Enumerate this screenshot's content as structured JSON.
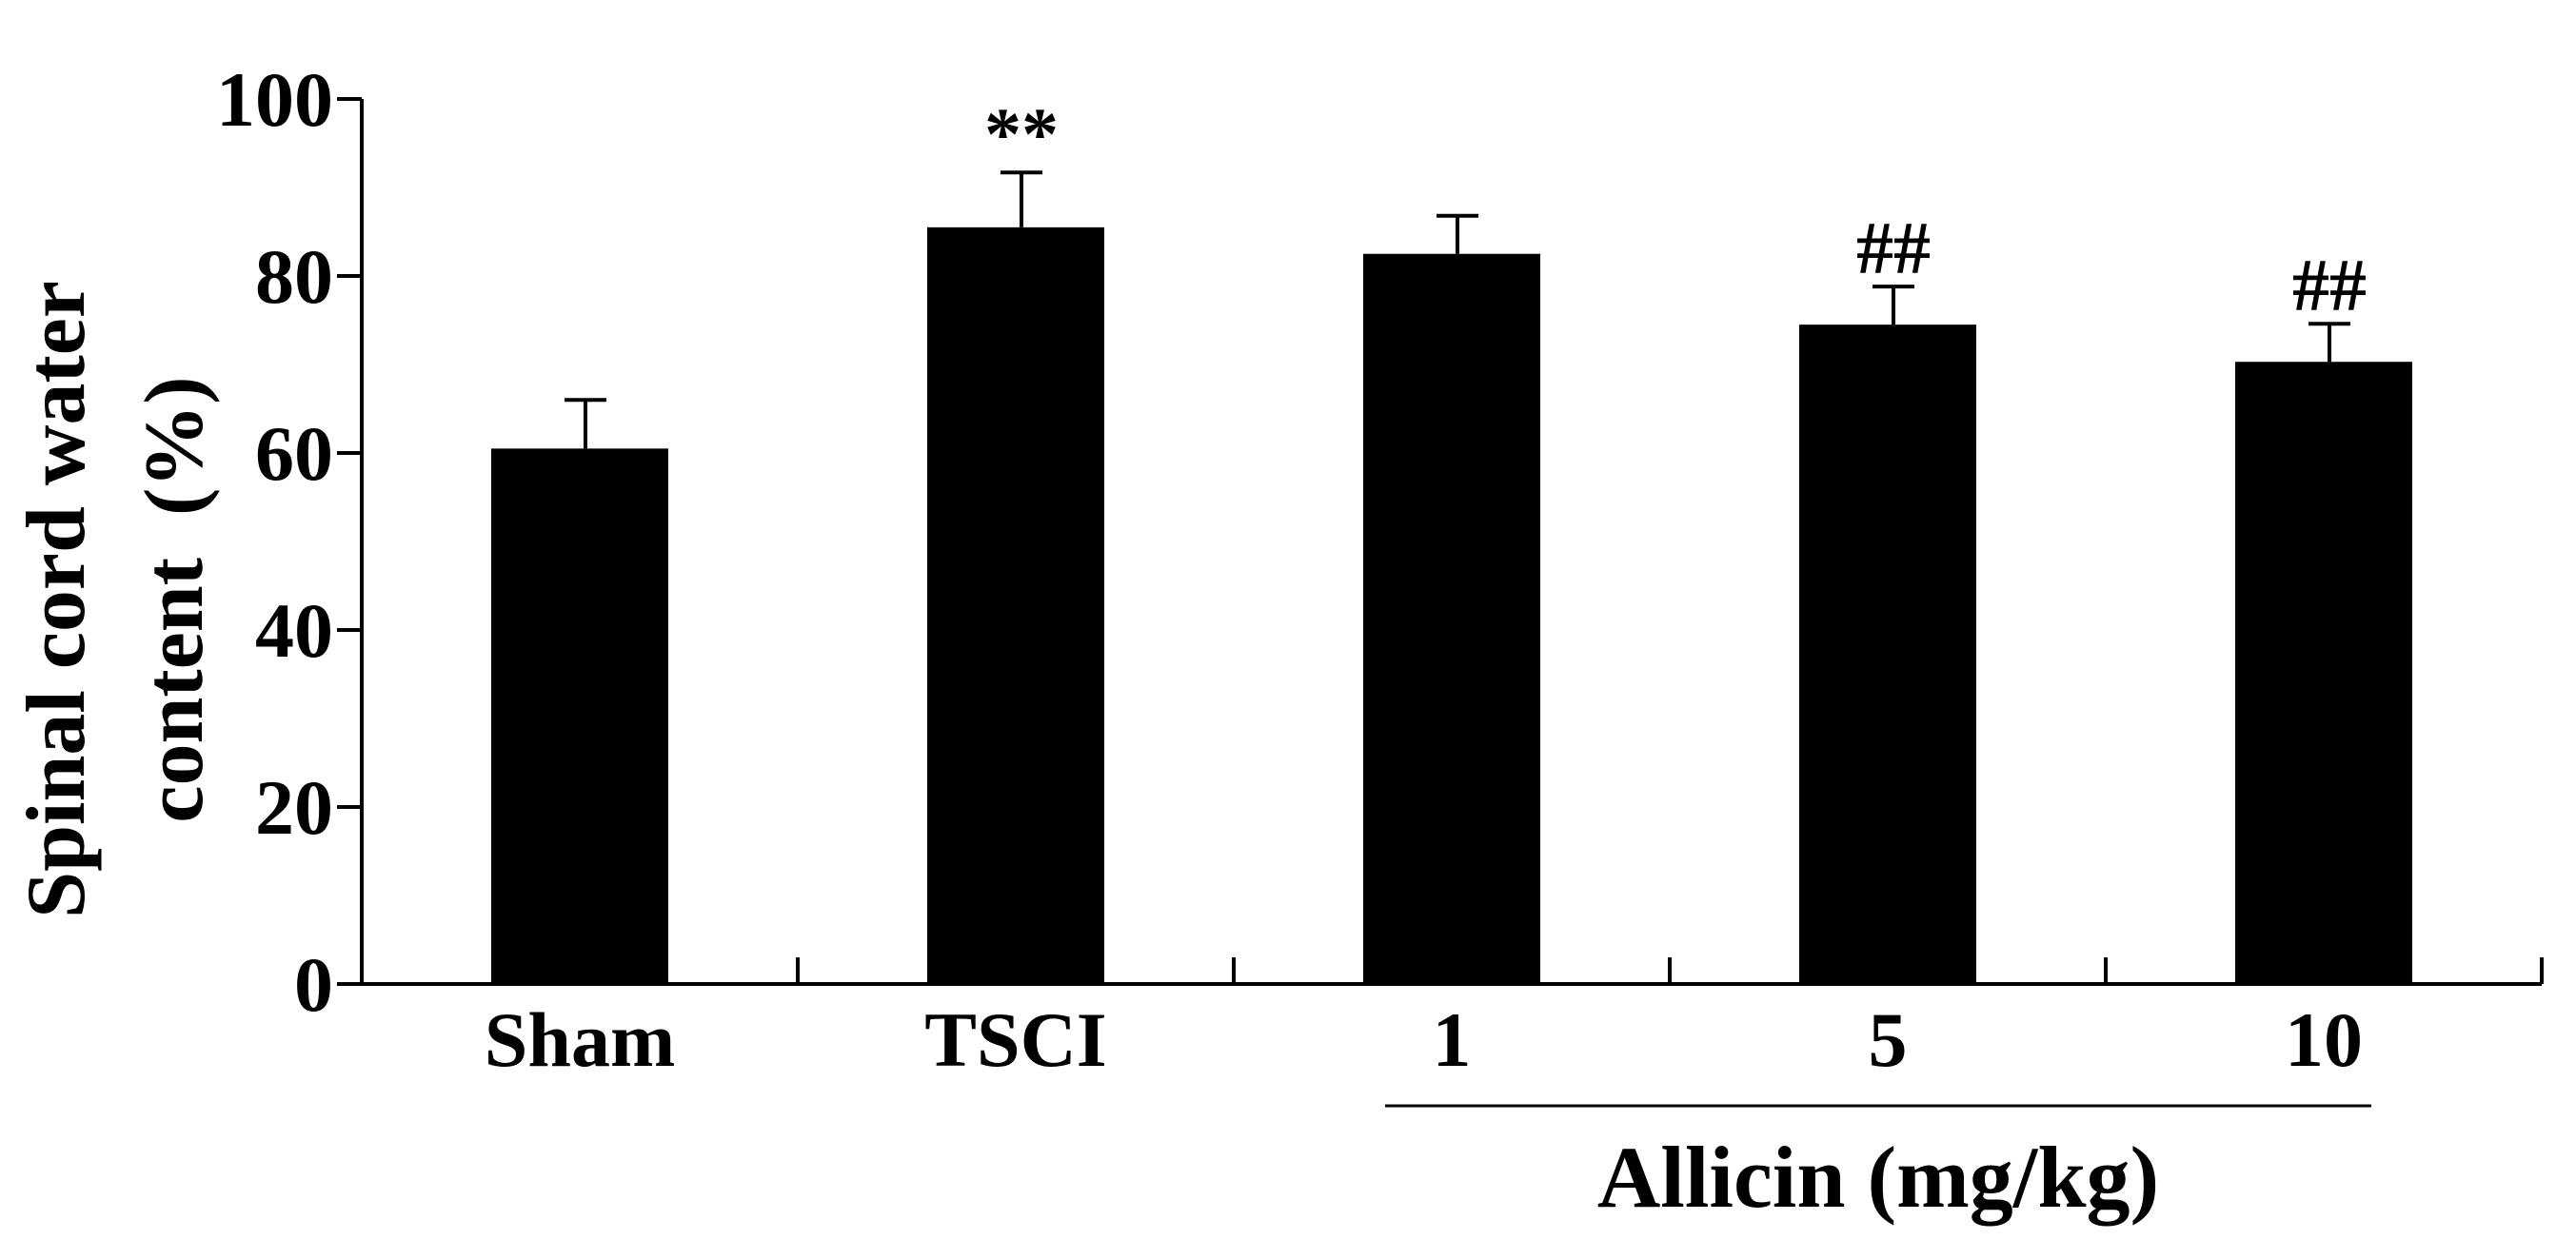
{
  "chart_data": {
    "type": "bar",
    "categories": [
      "Sham",
      "TSCI",
      "1",
      "5",
      "10"
    ],
    "values": [
      60.5,
      85.5,
      82.5,
      74.5,
      70.3
    ],
    "errors": [
      5.5,
      6.2,
      4.3,
      4.3,
      4.3
    ],
    "annotations": [
      "",
      "**",
      "",
      "##",
      "##"
    ],
    "ylabel_line1": "Spinal cord water",
    "ylabel_line2": "content  (%)",
    "group_label": "Allicin (mg/kg)",
    "group_categories": [
      "1",
      "5",
      "10"
    ],
    "yticks": [
      "0",
      "20",
      "40",
      "60",
      "80",
      "100"
    ],
    "ylim": [
      0,
      100
    ],
    "grid": false,
    "legend": "none",
    "bar_color": "#000000"
  }
}
